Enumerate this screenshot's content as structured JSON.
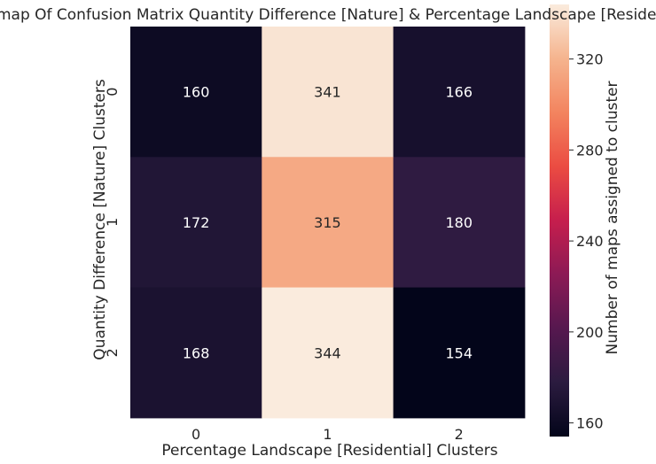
{
  "chart_data": {
    "type": "heatmap",
    "title": "Heatmap Of Confusion Matrix Quantity Difference [Nature] & Percentage Landscape [Residential]",
    "xlabel": "Percentage Landscape [Residential] Clusters",
    "ylabel": "Quantity Difference [Nature] Clusters",
    "x_categories": [
      "0",
      "1",
      "2"
    ],
    "y_categories": [
      "0",
      "1",
      "2"
    ],
    "values": [
      [
        160,
        341,
        166
      ],
      [
        172,
        315,
        180
      ],
      [
        168,
        344,
        154
      ]
    ],
    "colorbar": {
      "label": "Number of maps assigned to cluster",
      "ticks": [
        "160",
        "200",
        "240",
        "280",
        "320"
      ],
      "tick_values": [
        160,
        200,
        240,
        280,
        320
      ],
      "vmin": 154,
      "vmax": 344,
      "colormap": "rocket"
    },
    "colors": {
      "cmap_stops": [
        "#03051a",
        "#2b1b3f",
        "#56184f",
        "#8c1a55",
        "#c61e4d",
        "#eb4c42",
        "#f3845f",
        "#f5b48e",
        "#faebdd"
      ]
    }
  }
}
